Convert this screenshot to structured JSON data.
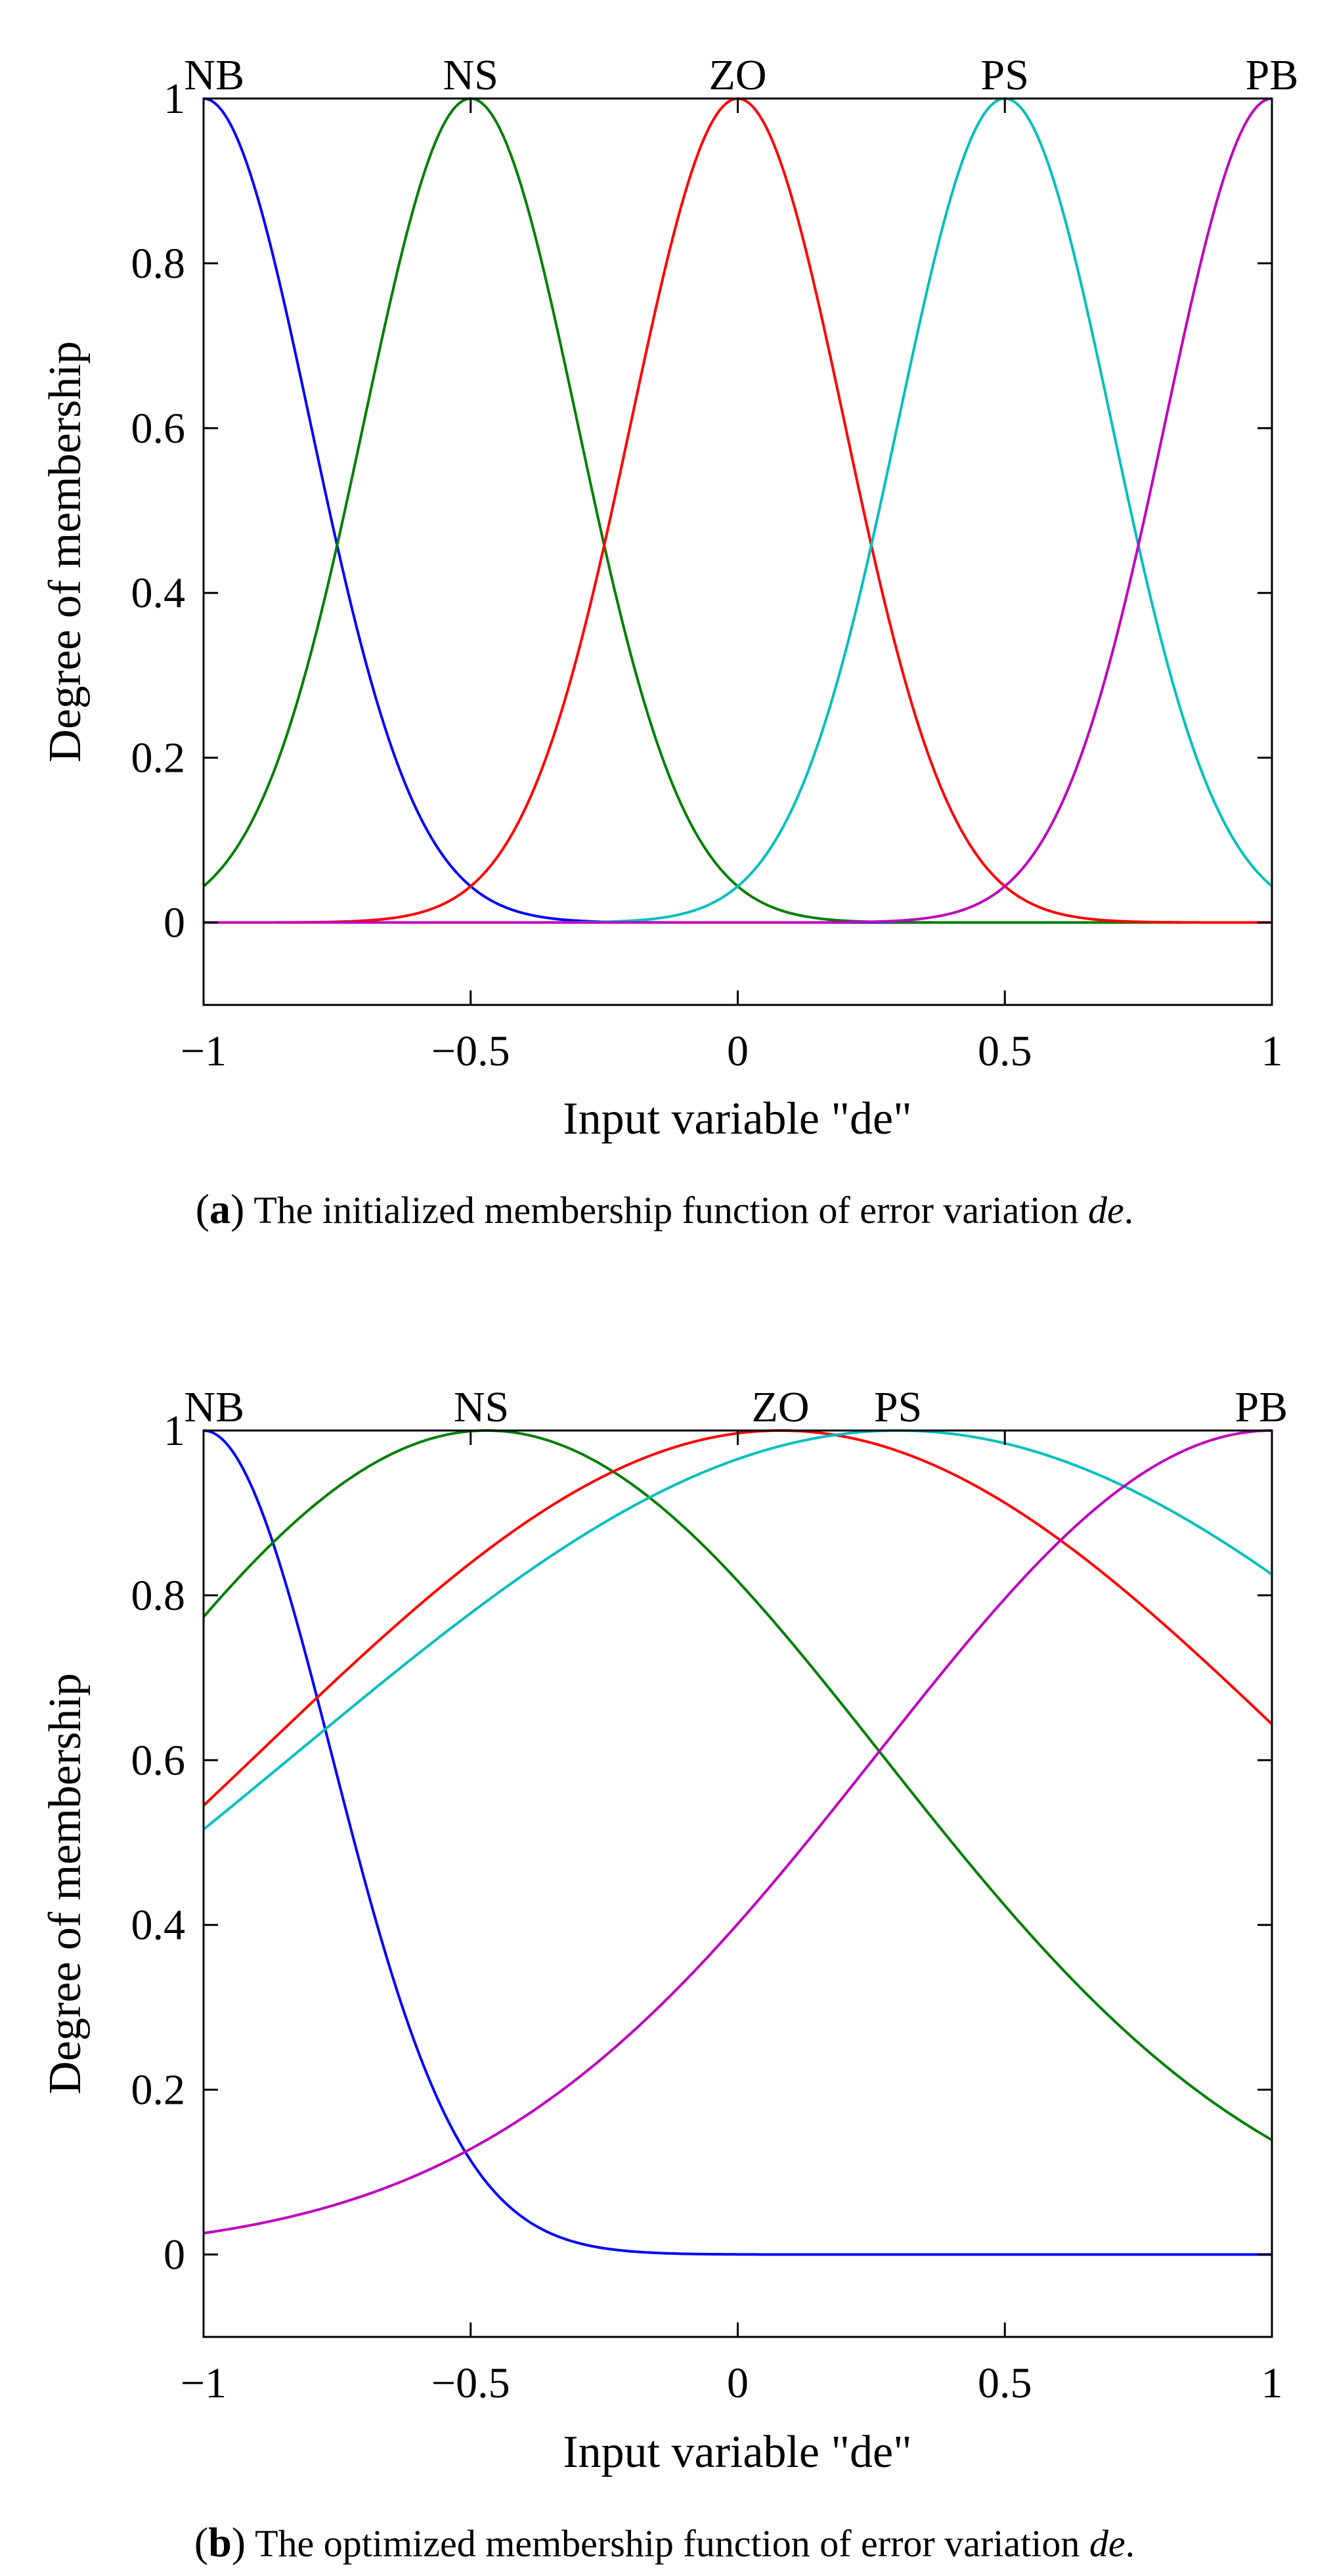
{
  "chart_data": [
    {
      "type": "line",
      "panel_letter": "a",
      "caption_text": "The initialized membership function of error variation ",
      "caption_var": "de",
      "caption_end": ".",
      "xlabel": "Input variable \"de\"",
      "ylabel": "Degree of membership",
      "xlim": [
        -1,
        1
      ],
      "ylim": [
        -0.1,
        1
      ],
      "xticks": [
        -1,
        -0.5,
        0,
        0.5,
        1
      ],
      "xtick_labels": [
        "−1",
        "−0.5",
        "0",
        "0.5",
        "1"
      ],
      "yticks": [
        0,
        0.2,
        0.4,
        0.6,
        0.8,
        1
      ],
      "ytick_labels": [
        "0",
        "0.2",
        "0.4",
        "0.6",
        "0.8",
        "1"
      ],
      "series": [
        {
          "name": "NB",
          "function": "gaussmf",
          "center": -1.0,
          "sigma": 0.2,
          "color": "#0000ff",
          "label_x": -0.98
        },
        {
          "name": "NS",
          "function": "gaussmf",
          "center": -0.5,
          "sigma": 0.2,
          "color": "#007f00",
          "label_x": -0.5
        },
        {
          "name": "ZO",
          "function": "gaussmf",
          "center": 0.0,
          "sigma": 0.2,
          "color": "#ff0000",
          "label_x": 0.0
        },
        {
          "name": "PS",
          "function": "gaussmf",
          "center": 0.5,
          "sigma": 0.2,
          "color": "#00bfbf",
          "label_x": 0.5
        },
        {
          "name": "PB",
          "function": "gaussmf",
          "center": 1.0,
          "sigma": 0.2,
          "color": "#bf00bf",
          "label_x": 1.0
        }
      ]
    },
    {
      "type": "line",
      "panel_letter": "b",
      "caption_text": "The optimized membership function of error variation ",
      "caption_var": "de",
      "caption_end": ".",
      "xlabel": "Input variable \"de\"",
      "ylabel": "Degree of membership",
      "xlim": [
        -1,
        1
      ],
      "ylim": [
        -0.1,
        1
      ],
      "xticks": [
        -1,
        -0.5,
        0,
        0.5,
        1
      ],
      "xtick_labels": [
        "−1",
        "−0.5",
        "0",
        "0.5",
        "1"
      ],
      "yticks": [
        0,
        0.2,
        0.4,
        0.6,
        0.8,
        1
      ],
      "ytick_labels": [
        "0",
        "0.2",
        "0.4",
        "0.6",
        "0.8",
        "1"
      ],
      "series": [
        {
          "name": "NB",
          "function": "gaussmf",
          "center": -1.0,
          "sigma": 0.24,
          "color": "#0000ff",
          "label_x": -0.98
        },
        {
          "name": "NS",
          "function": "gaussmf",
          "center": -0.47,
          "sigma": 0.74,
          "color": "#007f00",
          "label_x": -0.48
        },
        {
          "name": "ZO",
          "function": "gaussmf",
          "center": 0.08,
          "sigma": 0.98,
          "color": "#ff0000",
          "label_x": 0.08
        },
        {
          "name": "PS",
          "function": "gaussmf",
          "center": 0.3,
          "sigma": 1.13,
          "color": "#00bfbf",
          "label_x": 0.3
        },
        {
          "name": "PB",
          "function": "gaussmf",
          "center": 1.0,
          "sigma": 0.74,
          "color": "#bf00bf",
          "label_x": 0.98
        }
      ]
    }
  ]
}
